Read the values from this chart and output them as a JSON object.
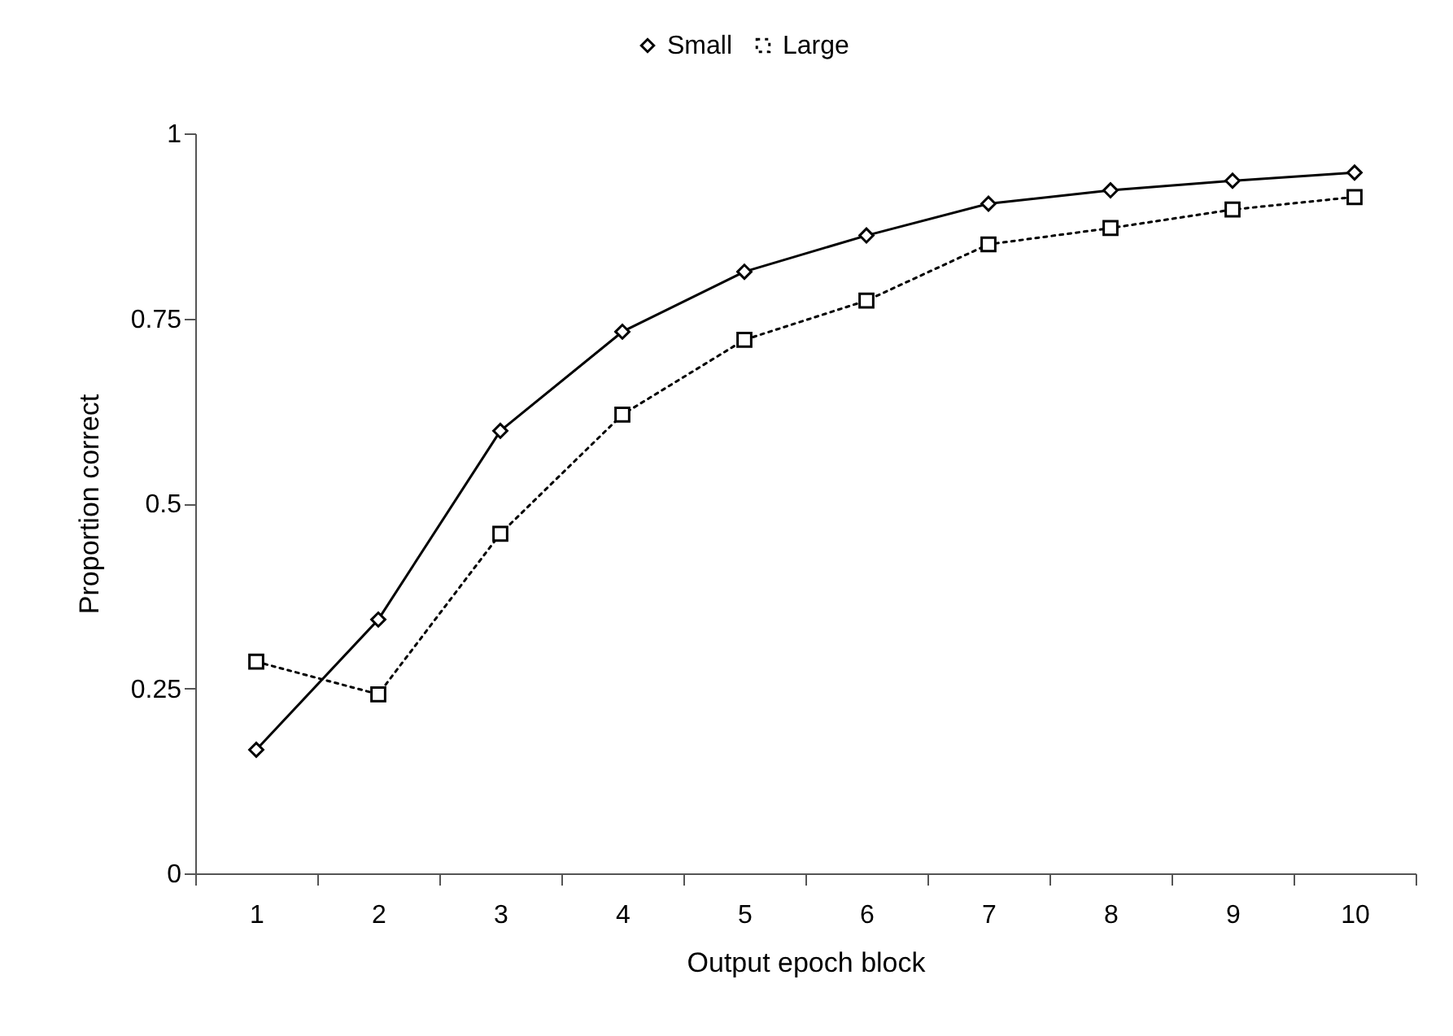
{
  "chart_data": {
    "type": "line",
    "xlabel": "Output epoch block",
    "ylabel": "Proportion correct",
    "categories": [
      "1",
      "2",
      "3",
      "4",
      "5",
      "6",
      "7",
      "8",
      "9",
      "10"
    ],
    "series": [
      {
        "name": "Small",
        "color": "#000000",
        "marker": "diamond",
        "line_style": "solid",
        "values": [
          0.167,
          0.343,
          0.598,
          0.732,
          0.813,
          0.862,
          0.905,
          0.923,
          0.936,
          0.947
        ]
      },
      {
        "name": "Large",
        "color": "#000000",
        "marker": "square",
        "line_style": "dotted",
        "values": [
          0.286,
          0.242,
          0.459,
          0.62,
          0.721,
          0.774,
          0.85,
          0.872,
          0.897,
          0.914
        ]
      }
    ],
    "ylim": [
      0,
      1
    ],
    "yticks": [
      0,
      0.25,
      0.5,
      0.75,
      1
    ],
    "grid": false,
    "legend": "top"
  }
}
